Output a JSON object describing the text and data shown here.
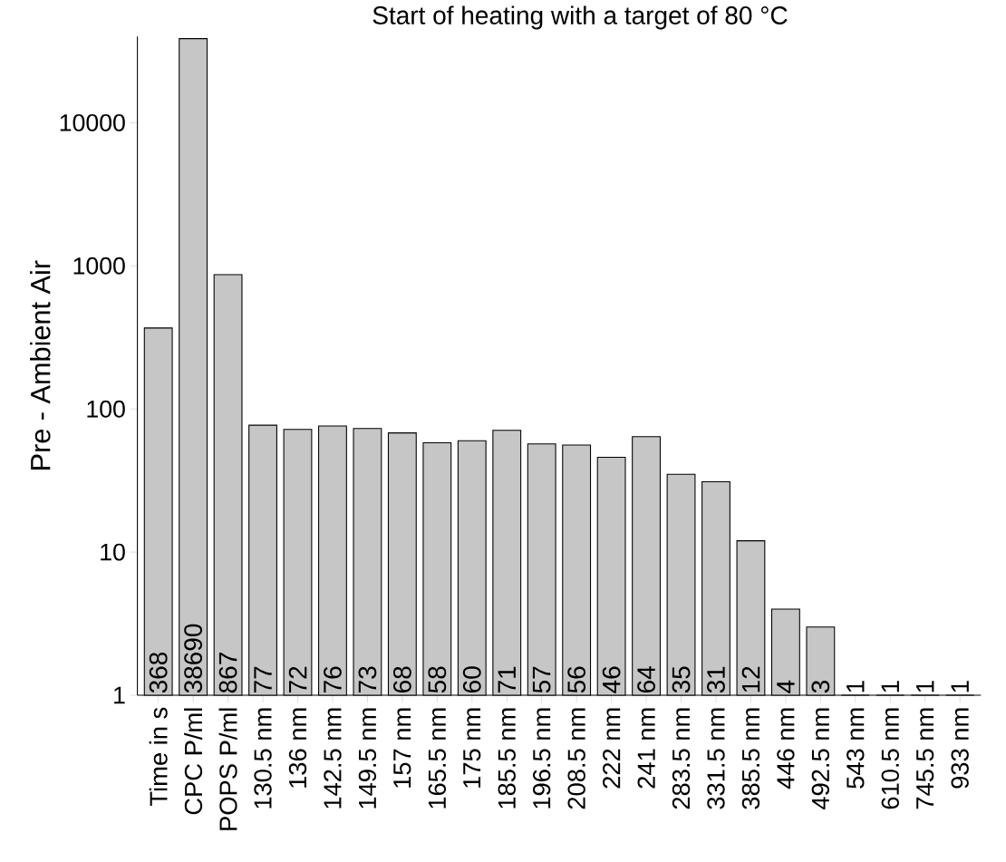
{
  "chart_data": {
    "type": "bar",
    "title": "Start of heating with a target of 80 °C",
    "ylabel": "Pre - Ambient Air",
    "categories": [
      "Time in s",
      "CPC P/ml",
      "POPS P/ml",
      "130.5 nm",
      "136 nm",
      "142.5 nm",
      "149.5 nm",
      "157 nm",
      "165.5 nm",
      "175 nm",
      "185.5 nm",
      "196.5 nm",
      "208.5 nm",
      "222 nm",
      "241 nm",
      "283.5 nm",
      "331.5 nm",
      "385.5 nm",
      "446 nm",
      "492.5 nm",
      "543 nm",
      "610.5 nm",
      "745.5 nm",
      "933 nm"
    ],
    "values": [
      368,
      38690,
      867,
      77,
      72,
      76,
      73,
      68,
      58,
      60,
      71,
      57,
      56,
      46,
      64,
      35,
      31,
      12,
      4,
      3,
      1,
      1,
      1,
      1
    ],
    "color": "#c6c6c6",
    "log": "y",
    "ylim": [
      1,
      40000
    ],
    "yticks": [
      1,
      10,
      100,
      1000,
      10000
    ],
    "data_labels": true
  }
}
